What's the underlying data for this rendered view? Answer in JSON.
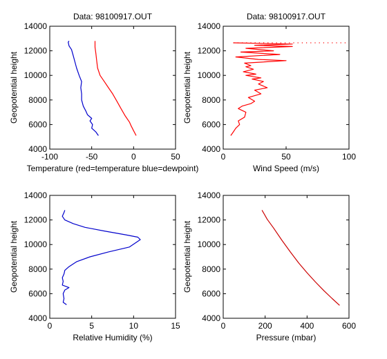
{
  "chart_data": [
    {
      "type": "line",
      "title": "Data: 98100917.OUT",
      "xlabel": "Temperature (red=temperature blue=dewpoint)",
      "ylabel": "Geopotential height",
      "xlim": [
        -100,
        50
      ],
      "ylim": [
        4000,
        14000
      ],
      "xticks": [
        -100,
        -50,
        0,
        50
      ],
      "yticks": [
        4000,
        6000,
        8000,
        10000,
        12000,
        14000
      ],
      "grid": false,
      "series": [
        {
          "color": "#ff0000",
          "points": [
            [
              3,
              5100
            ],
            [
              0,
              5500
            ],
            [
              -3,
              5900
            ],
            [
              -5,
              6200
            ],
            [
              -10,
              6700
            ],
            [
              -15,
              7300
            ],
            [
              -20,
              7900
            ],
            [
              -25,
              8500
            ],
            [
              -30,
              9000
            ],
            [
              -35,
              9500
            ],
            [
              -40,
              10000
            ],
            [
              -43,
              10600
            ],
            [
              -44,
              11200
            ],
            [
              -45,
              11800
            ],
            [
              -46,
              12300
            ],
            [
              -46,
              12800
            ]
          ]
        },
        {
          "color": "#0000cc",
          "points": [
            [
              -42,
              5100
            ],
            [
              -45,
              5400
            ],
            [
              -50,
              5700
            ],
            [
              -49,
              6000
            ],
            [
              -52,
              6300
            ],
            [
              -50,
              6500
            ],
            [
              -55,
              6800
            ],
            [
              -57,
              7100
            ],
            [
              -60,
              7500
            ],
            [
              -62,
              8000
            ],
            [
              -62,
              8500
            ],
            [
              -63,
              9000
            ],
            [
              -62,
              9500
            ],
            [
              -65,
              10000
            ],
            [
              -68,
              10600
            ],
            [
              -70,
              11100
            ],
            [
              -72,
              11600
            ],
            [
              -74,
              12100
            ],
            [
              -77,
              12400
            ],
            [
              -78,
              12700
            ],
            [
              -77,
              12800
            ]
          ]
        }
      ]
    },
    {
      "type": "line",
      "title": "Data: 98100917.OUT",
      "xlabel": "Wind Speed (m/s)",
      "ylabel": "Geopotential height",
      "xlim": [
        0,
        100
      ],
      "ylim": [
        4000,
        14000
      ],
      "xticks": [
        0,
        50,
        100
      ],
      "yticks": [
        4000,
        6000,
        8000,
        10000,
        12000,
        14000
      ],
      "grid": false,
      "series": [
        {
          "color": "#ff0000",
          "points": [
            [
              6,
              5100
            ],
            [
              8,
              5400
            ],
            [
              10,
              5700
            ],
            [
              13,
              6000
            ],
            [
              12,
              6300
            ],
            [
              17,
              6600
            ],
            [
              18,
              7000
            ],
            [
              12,
              7300
            ],
            [
              15,
              7500
            ],
            [
              22,
              7700
            ],
            [
              25,
              7900
            ],
            [
              20,
              8200
            ],
            [
              30,
              8500
            ],
            [
              25,
              8800
            ],
            [
              35,
              9000
            ],
            [
              28,
              9300
            ],
            [
              32,
              9500
            ],
            [
              23,
              9700
            ],
            [
              30,
              9800
            ],
            [
              18,
              10000
            ],
            [
              26,
              10100
            ],
            [
              16,
              10300
            ],
            [
              24,
              10500
            ],
            [
              18,
              10700
            ],
            [
              22,
              10800
            ],
            [
              17,
              11000
            ],
            [
              50,
              11200
            ],
            [
              28,
              11300
            ],
            [
              10,
              11500
            ],
            [
              45,
              11700
            ],
            [
              14,
              11900
            ],
            [
              40,
              12000
            ],
            [
              18,
              12200
            ],
            [
              55,
              12350
            ],
            [
              25,
              12450
            ],
            [
              55,
              12550
            ],
            [
              8,
              12650
            ]
          ]
        },
        {
          "color": "#ff0000",
          "style": "dotted",
          "points": [
            [
              8,
              12650
            ],
            [
              100,
              12650
            ]
          ]
        }
      ]
    },
    {
      "type": "line",
      "title": "",
      "xlabel": "Relative Humidity (%)",
      "ylabel": "Geopotential height",
      "xlim": [
        0,
        15
      ],
      "ylim": [
        4000,
        14000
      ],
      "xticks": [
        0,
        5,
        10,
        15
      ],
      "yticks": [
        4000,
        6000,
        8000,
        10000,
        12000,
        14000
      ],
      "grid": false,
      "series": [
        {
          "color": "#0000cc",
          "points": [
            [
              2.0,
              5100
            ],
            [
              1.6,
              5300
            ],
            [
              1.7,
              5600
            ],
            [
              1.6,
              6000
            ],
            [
              1.8,
              6300
            ],
            [
              2.3,
              6500
            ],
            [
              1.5,
              6700
            ],
            [
              1.6,
              7000
            ],
            [
              1.5,
              7300
            ],
            [
              1.7,
              7600
            ],
            [
              1.8,
              7900
            ],
            [
              2.3,
              8200
            ],
            [
              3.2,
              8600
            ],
            [
              4.8,
              9000
            ],
            [
              7.0,
              9400
            ],
            [
              9.5,
              9800
            ],
            [
              10.8,
              10400
            ],
            [
              10.5,
              10600
            ],
            [
              9.0,
              10800
            ],
            [
              6.5,
              11100
            ],
            [
              4.2,
              11400
            ],
            [
              2.8,
              11700
            ],
            [
              1.8,
              12000
            ],
            [
              1.5,
              12300
            ],
            [
              1.7,
              12600
            ],
            [
              1.8,
              12800
            ]
          ]
        }
      ]
    },
    {
      "type": "line",
      "title": "",
      "xlabel": "Pressure (mbar)",
      "ylabel": "Geopotential height",
      "xlim": [
        0,
        600
      ],
      "ylim": [
        4000,
        14000
      ],
      "xticks": [
        0,
        200,
        400,
        600
      ],
      "yticks": [
        4000,
        6000,
        8000,
        10000,
        12000,
        14000
      ],
      "grid": false,
      "series": [
        {
          "color": "#cc0000",
          "points": [
            [
              555,
              5050
            ],
            [
              520,
              5600
            ],
            [
              480,
              6250
            ],
            [
              440,
              6950
            ],
            [
              400,
              7700
            ],
            [
              360,
              8500
            ],
            [
              320,
              9400
            ],
            [
              280,
              10350
            ],
            [
              240,
              11350
            ],
            [
              210,
              12050
            ],
            [
              185,
              12800
            ]
          ]
        }
      ]
    }
  ]
}
